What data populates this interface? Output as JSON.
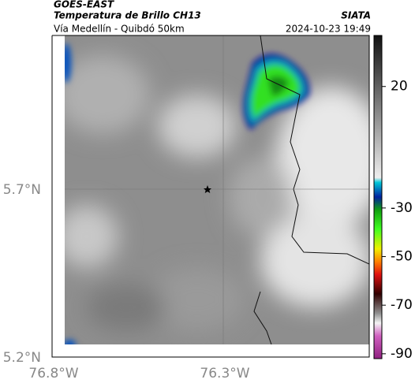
{
  "header": {
    "satellite": "GOES-EAST",
    "product": "Temperatura de Brillo CH13",
    "route": "Vía Medellín - Quibdó 50km",
    "source": "SIATA",
    "timestamp": "2024-10-23 19:49"
  },
  "map": {
    "lat_labels": [
      "5.7°N",
      "5.2°N"
    ],
    "lon_labels": [
      "76.8°W",
      "76.3°W"
    ]
  },
  "colorbar": {
    "range": [
      -92,
      41
    ],
    "ticks": [
      20,
      -30,
      -50,
      -70,
      -90
    ]
  }
}
